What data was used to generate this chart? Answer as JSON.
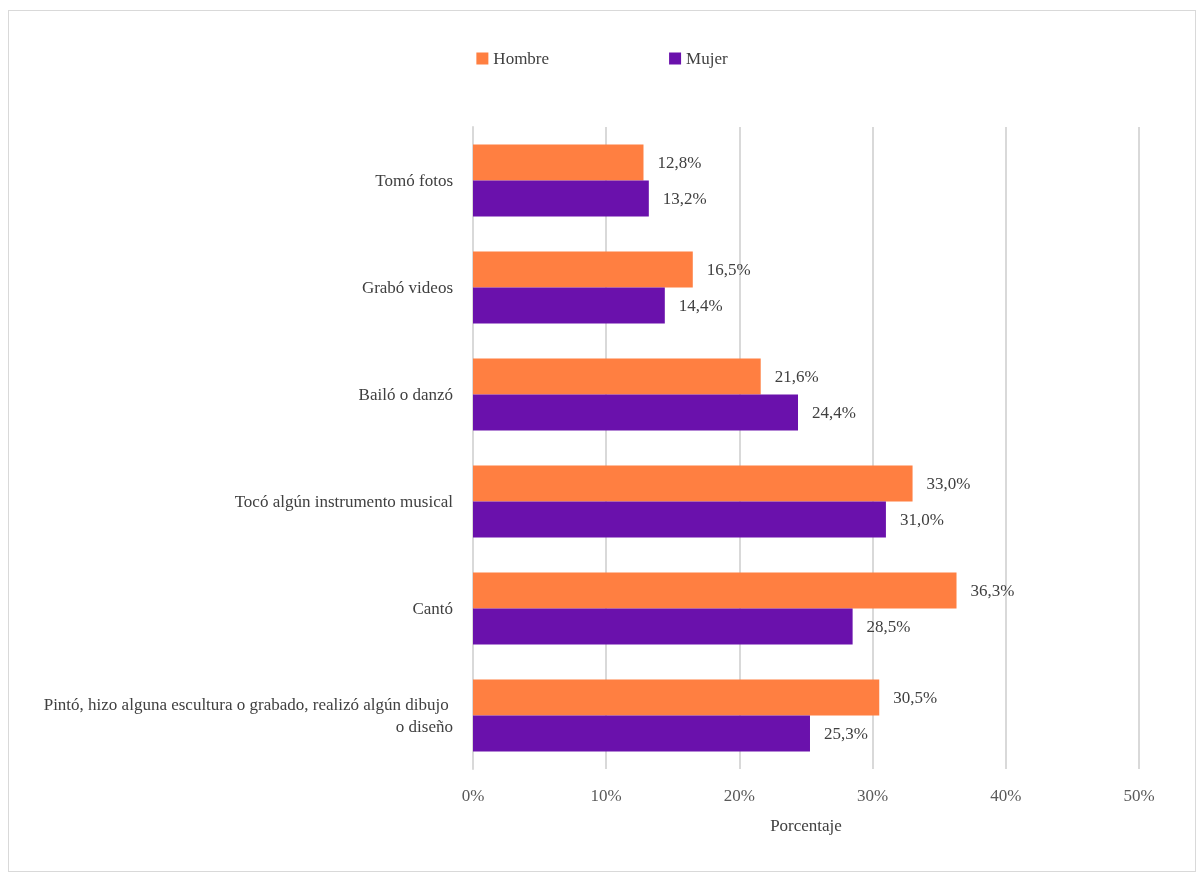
{
  "chart_data": {
    "type": "bar",
    "orientation": "horizontal",
    "categories": [
      "Tomó fotos",
      "Grabó videos",
      "Bailó o danzó",
      "Tocó algún instrumento musical",
      "Cantó",
      "Pintó, hizo alguna escultura o grabado, realizó algún dibujo o diseño"
    ],
    "series": [
      {
        "name": "Hombre",
        "color": "#ff7f41",
        "values": [
          12.8,
          16.5,
          21.6,
          33.0,
          36.3,
          30.5
        ],
        "value_labels": [
          "12,8%",
          "16,5%",
          "21,6%",
          "33,0%",
          "36,3%",
          "30,5%"
        ]
      },
      {
        "name": "Mujer",
        "color": "#6a11ac",
        "values": [
          13.2,
          14.4,
          24.4,
          31.0,
          28.5,
          25.3
        ],
        "value_labels": [
          "13,2%",
          "14,4%",
          "24,4%",
          "31,0%",
          "28,5%",
          "25,3%"
        ]
      }
    ],
    "xlabel": "Porcentaje",
    "xlim": [
      0,
      50
    ],
    "xticks": [
      {
        "value": 0,
        "label": "0%"
      },
      {
        "value": 10,
        "label": "10%"
      },
      {
        "value": 20,
        "label": "20%"
      },
      {
        "value": 30,
        "label": "30%"
      },
      {
        "value": 40,
        "label": "40%"
      },
      {
        "value": 50,
        "label": "50%"
      }
    ],
    "grid": "x",
    "legend": "top"
  }
}
